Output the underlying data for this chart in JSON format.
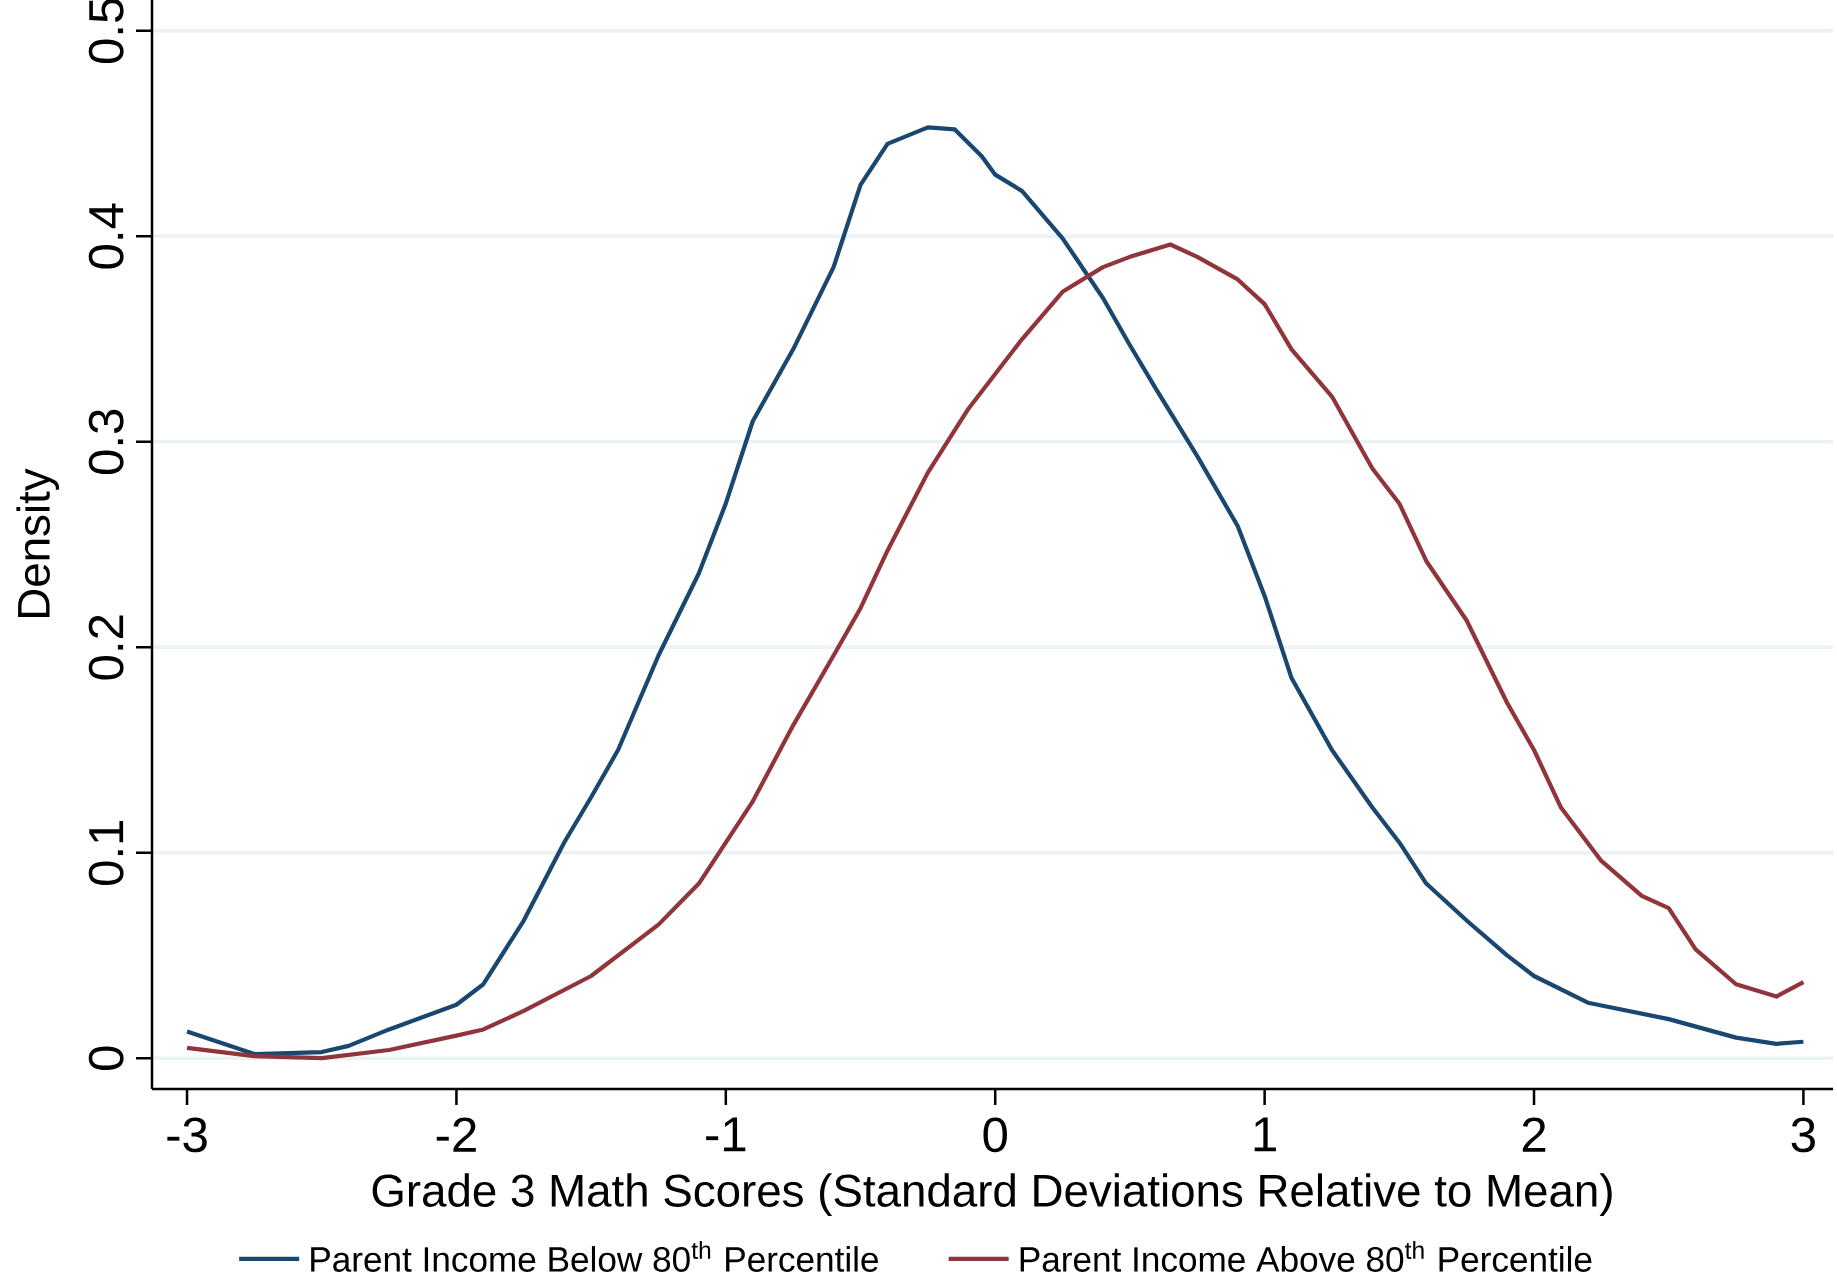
{
  "chart_data": {
    "type": "line",
    "xlabel": "Grade 3 Math Scores (Standard Deviations Relative to Mean)",
    "ylabel": "Density",
    "xlim": [
      -3.13,
      3.11
    ],
    "ylim": [
      -0.015,
      0.515
    ],
    "xticks": [
      -3,
      -2,
      -1,
      0,
      1,
      2,
      3
    ],
    "yticks": [
      0,
      0.1,
      0.2,
      0.3,
      0.4,
      0.5
    ],
    "grid": "y",
    "legend": "bottom",
    "line_style": "solid",
    "series": [
      {
        "name": "Parent Income Below 80$^{th}$ Percentile",
        "color": "#1a476f",
        "x": [
          -3,
          -2.75,
          -2.5,
          -2.4,
          -2.25,
          -2,
          -1.9,
          -1.75,
          -1.6,
          -1.5,
          -1.4,
          -1.25,
          -1.1,
          -1,
          -0.9,
          -0.75,
          -0.6,
          -0.5,
          -0.4,
          -0.25,
          -0.15,
          -0.05,
          0,
          0.1,
          0.25,
          0.4,
          0.5,
          0.6,
          0.75,
          0.9,
          1,
          1.1,
          1.25,
          1.4,
          1.5,
          1.6,
          1.75,
          1.9,
          2,
          2.2,
          2.5,
          2.75,
          2.9,
          3
        ],
        "values": [
          0.013,
          0.002,
          0.003,
          0.006,
          0.014,
          0.026,
          0.036,
          0.067,
          0.105,
          0.127,
          0.15,
          0.196,
          0.236,
          0.27,
          0.31,
          0.345,
          0.385,
          0.425,
          0.445,
          0.453,
          0.452,
          0.439,
          0.43,
          0.422,
          0.399,
          0.37,
          0.347,
          0.325,
          0.293,
          0.259,
          0.225,
          0.185,
          0.15,
          0.122,
          0.105,
          0.085,
          0.067,
          0.05,
          0.04,
          0.027,
          0.019,
          0.01,
          0.007,
          0.008
        ]
      },
      {
        "name": "Parent Income Above 80$^{th}$ Percentile",
        "color": "#90353b",
        "x": [
          -3,
          -2.75,
          -2.5,
          -2.25,
          -2,
          -1.9,
          -1.75,
          -1.5,
          -1.25,
          -1.1,
          -1,
          -0.9,
          -0.75,
          -0.6,
          -0.5,
          -0.4,
          -0.25,
          -0.1,
          0,
          0.1,
          0.25,
          0.4,
          0.5,
          0.65,
          0.75,
          0.9,
          1,
          1.1,
          1.25,
          1.4,
          1.5,
          1.6,
          1.75,
          1.9,
          2,
          2.1,
          2.25,
          2.4,
          2.5,
          2.6,
          2.75,
          2.9,
          3
        ],
        "values": [
          0.005,
          0.001,
          0.0,
          0.004,
          0.011,
          0.014,
          0.023,
          0.04,
          0.065,
          0.085,
          0.105,
          0.125,
          0.162,
          0.196,
          0.219,
          0.247,
          0.285,
          0.316,
          0.333,
          0.35,
          0.373,
          0.385,
          0.39,
          0.396,
          0.39,
          0.379,
          0.367,
          0.345,
          0.322,
          0.287,
          0.27,
          0.242,
          0.213,
          0.173,
          0.15,
          0.122,
          0.096,
          0.079,
          0.073,
          0.053,
          0.036,
          0.03,
          0.037
        ]
      }
    ]
  }
}
